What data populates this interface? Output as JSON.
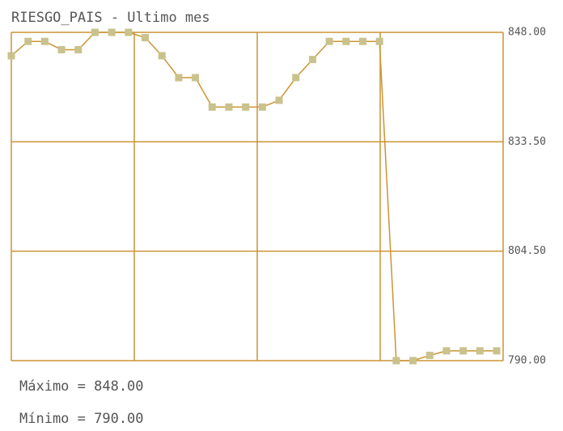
{
  "chart_data": {
    "type": "line",
    "title": "RIESGO_PAIS - Ultimo mes",
    "categories": [
      null,
      null,
      null,
      null,
      null,
      null,
      null,
      null,
      null,
      null,
      null,
      null,
      null,
      null,
      null,
      null,
      null,
      null,
      null,
      null,
      null,
      null,
      null,
      null,
      null,
      null,
      null,
      null,
      null,
      null
    ],
    "series": [
      {
        "name": "RIESGO_PAIS",
        "color": "#cc9433",
        "marker_color": "#c9c28c",
        "values": [
          844.9,
          846.8,
          846.8,
          845.7,
          845.7,
          848,
          848,
          848,
          847.3,
          844.9,
          842,
          842,
          838.1,
          838.1,
          838.1,
          838.1,
          839,
          842,
          844.4,
          846.8,
          846.8,
          846.8,
          846.8,
          790,
          790,
          790.7,
          791.3,
          791.3,
          791.3,
          791.3
        ]
      }
    ],
    "ylim": [
      790,
      848
    ],
    "yticks": [
      {
        "value": 848,
        "label": "848.00"
      },
      {
        "value": 833.5,
        "label": "833.50"
      },
      {
        "value": 804.5,
        "label": "804.50"
      },
      {
        "value": 790,
        "label": "790.00"
      }
    ],
    "grid": true,
    "annotations": [
      "Máximo = 848.00",
      "Mínimo = 790.00"
    ]
  }
}
